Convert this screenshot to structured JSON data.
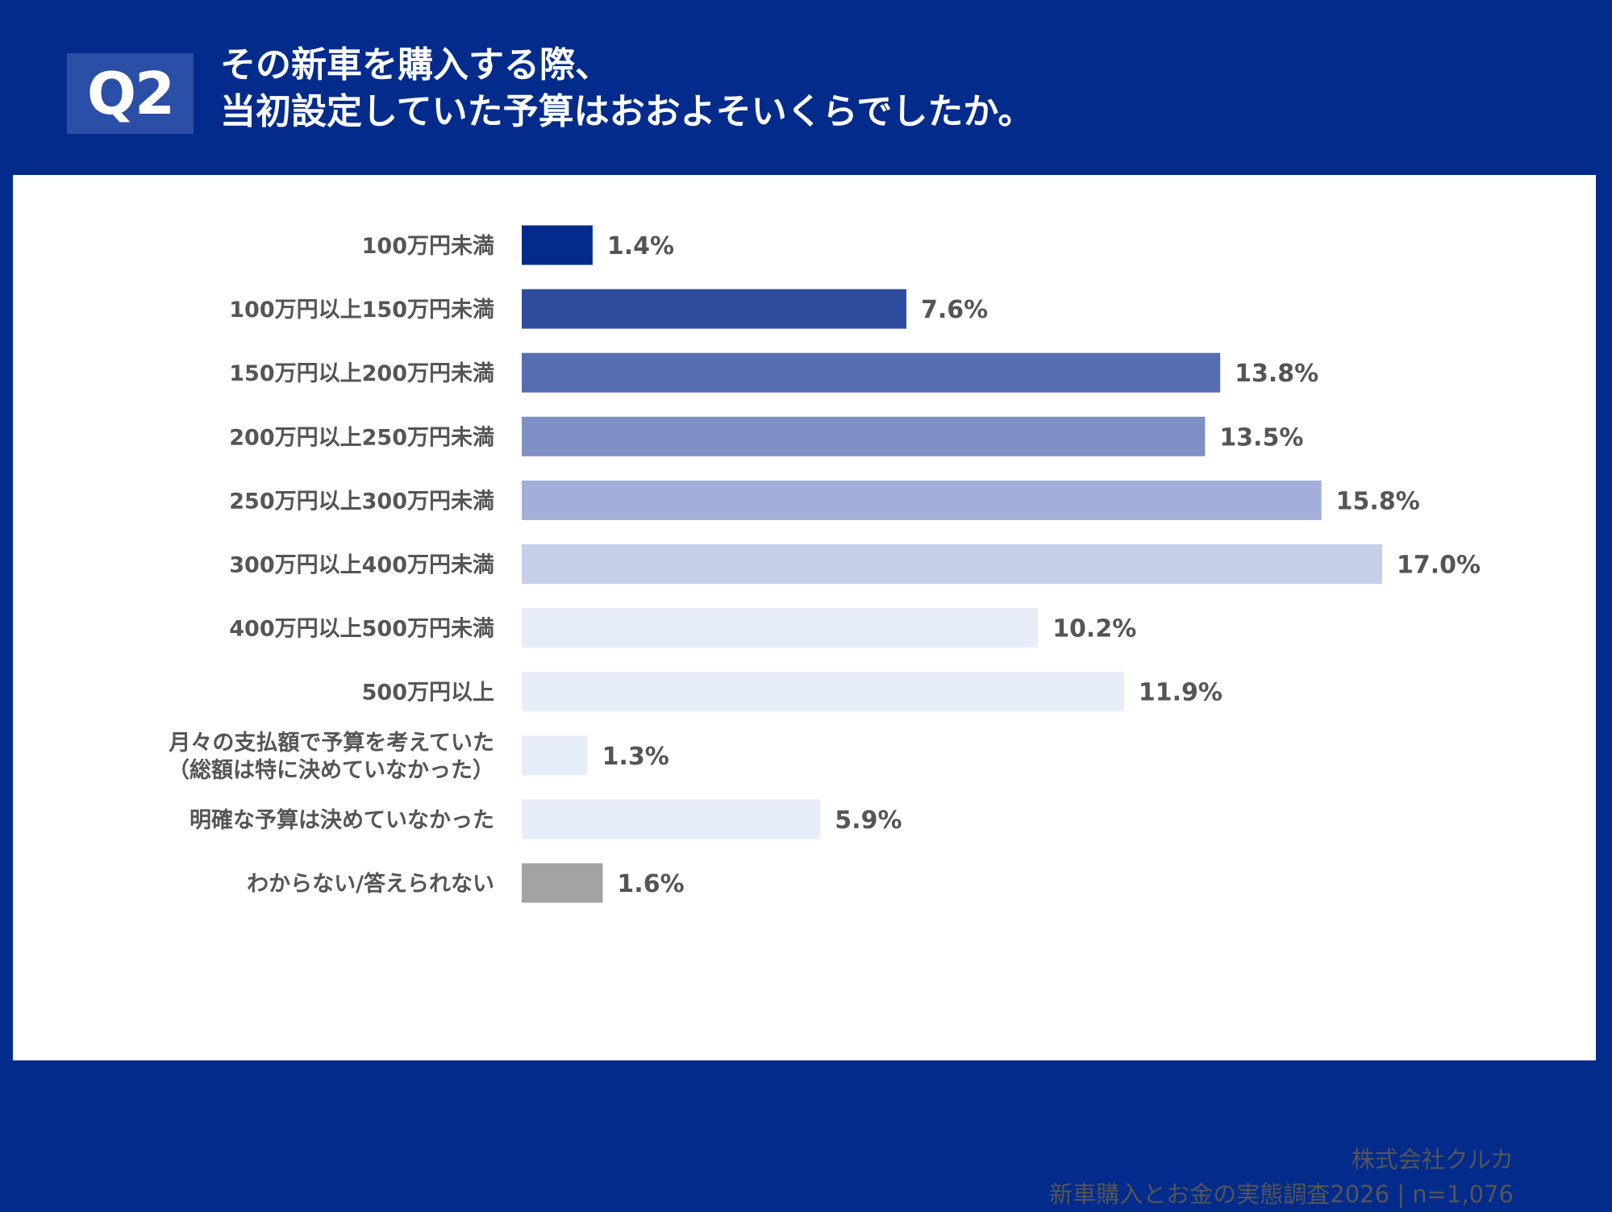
{
  "header": {
    "badge": "Q2",
    "title_line1": "その新車を購入する際、",
    "title_line2": "当初設定していた予算はおおよそいくらでしたか。"
  },
  "chart_data": {
    "type": "bar",
    "orientation": "horizontal",
    "title": "その新車を購入する際、当初設定していた予算はおおよそいくらでしたか。",
    "unit": "%",
    "categories": [
      [
        "100万円未満"
      ],
      [
        "100万円以上150万円未満"
      ],
      [
        "150万円以上200万円未満"
      ],
      [
        "200万円以上250万円未満"
      ],
      [
        "250万円以上300万円未満"
      ],
      [
        "300万円以上400万円未満"
      ],
      [
        "400万円以上500万円未満"
      ],
      [
        "500万円以上"
      ],
      [
        "月々の支払額で予算を考えていた",
        "（総額は特に決めていなかった）"
      ],
      [
        "明確な予算は決めていなかった"
      ],
      [
        "わからない/答えられない"
      ]
    ],
    "values": [
      1.4,
      7.6,
      13.8,
      13.5,
      15.8,
      17.0,
      10.2,
      11.9,
      1.3,
      5.9,
      1.6
    ],
    "value_labels": [
      "1.4%",
      "7.6%",
      "13.8%",
      "13.5%",
      "15.8%",
      "17.0%",
      "10.2%",
      "11.9%",
      "1.3%",
      "5.9%",
      "1.6%"
    ],
    "colors": [
      "#022b8c",
      "#2e4d9e",
      "#566cb1",
      "#7d8fc4",
      "#a4afd9",
      "#c6cfe8",
      "#e7edf8",
      "#e7edf8",
      "#e7edf8",
      "#e7edf8",
      "#a3a3a3"
    ],
    "xlim": [
      0,
      17.0
    ]
  },
  "footer": {
    "company": "株式会社クルカ",
    "survey": "新車購入とお金の実態調査2026 | n=1,076"
  }
}
